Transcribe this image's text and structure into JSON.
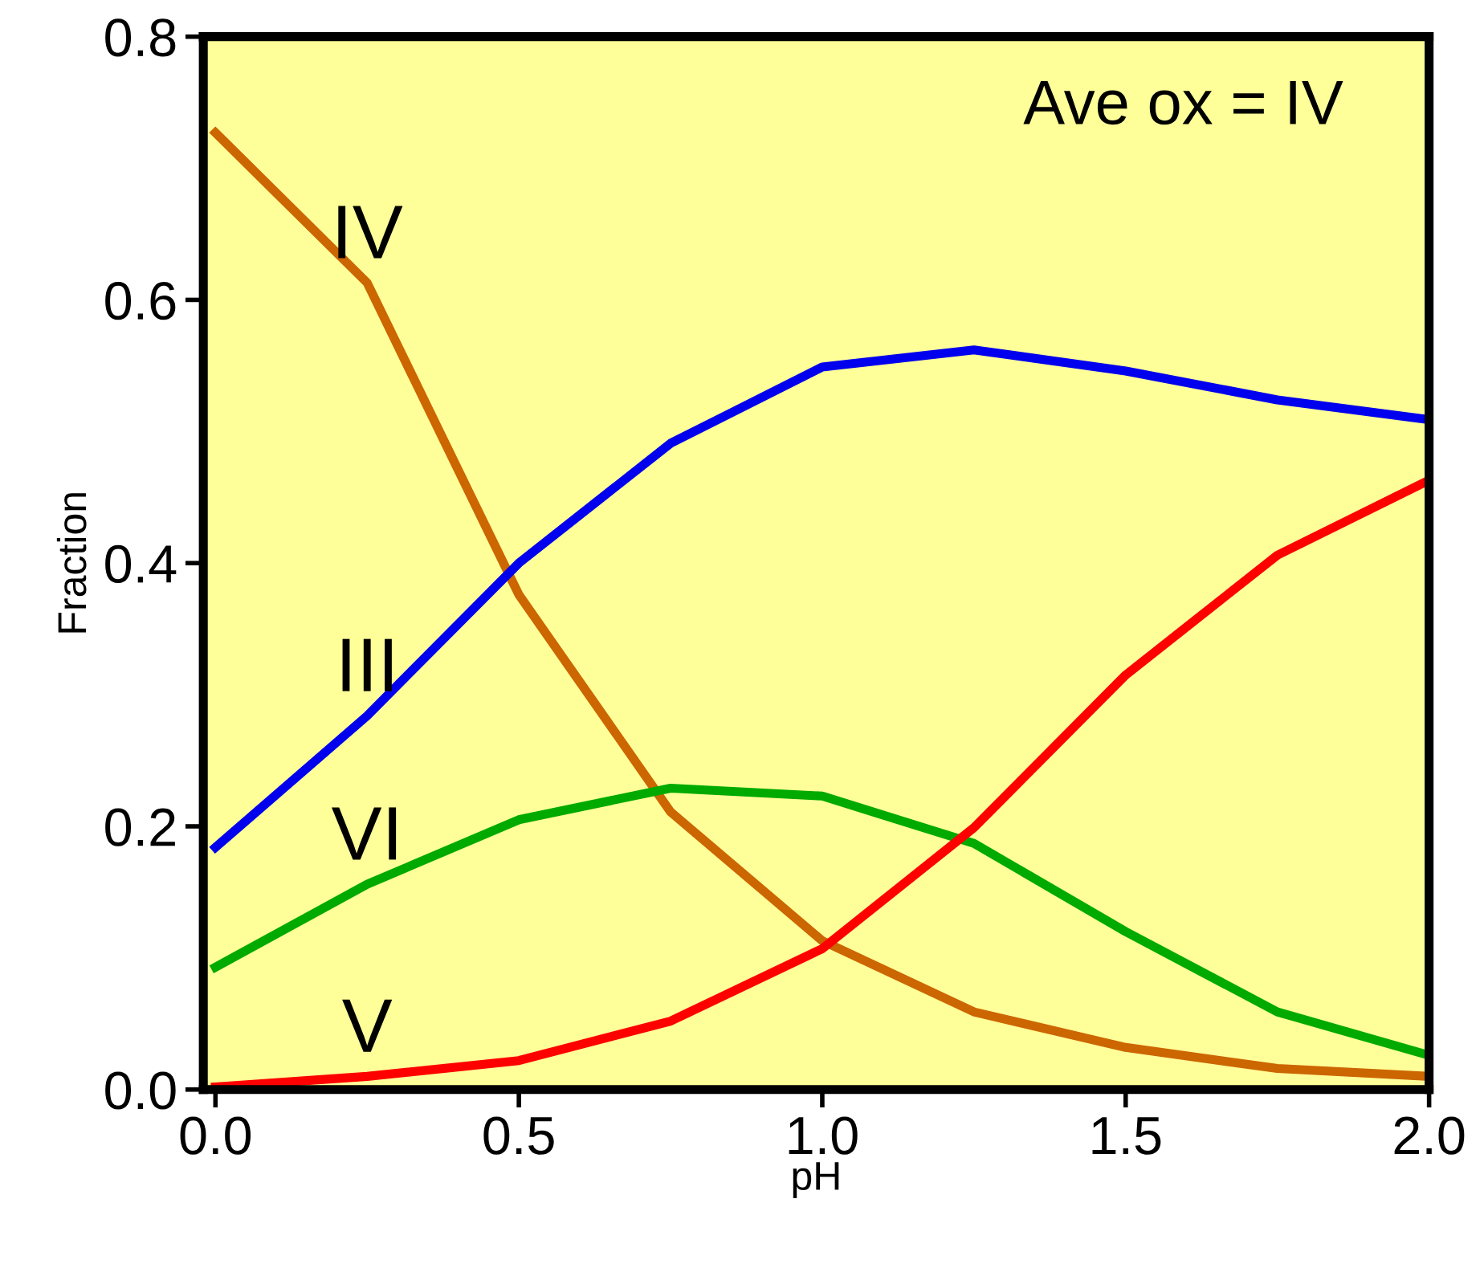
{
  "chart_data": {
    "type": "line",
    "xlabel": "pH",
    "ylabel": "Fraction",
    "x": [
      0,
      0.25,
      0.5,
      0.75,
      1.0,
      1.25,
      1.5,
      1.75,
      2.0
    ],
    "series": [
      {
        "name": "IV",
        "color": "#cc6600",
        "values": [
          0.727,
          0.613,
          0.376,
          0.211,
          0.113,
          0.059,
          0.032,
          0.016,
          0.01
        ]
      },
      {
        "name": "III",
        "color": "#0000ee",
        "values": [
          0.184,
          0.284,
          0.4,
          0.491,
          0.549,
          0.562,
          0.546,
          0.524,
          0.509
        ]
      },
      {
        "name": "VI",
        "color": "#00aa00",
        "values": [
          0.093,
          0.156,
          0.205,
          0.229,
          0.223,
          0.187,
          0.12,
          0.059,
          0.026
        ]
      },
      {
        "name": "V",
        "color": "#ff0000",
        "values": [
          0.002,
          0.01,
          0.022,
          0.052,
          0.107,
          0.199,
          0.315,
          0.406,
          0.463
        ]
      }
    ],
    "xlim": [
      -0.02,
      2.0
    ],
    "ylim": [
      0.0,
      0.8
    ],
    "xticks": [
      {
        "value": 0,
        "label": "0.0"
      },
      0.5,
      {
        "value": 1,
        "label": "1.0"
      },
      1.5,
      {
        "value": 2,
        "label": "2.0"
      }
    ],
    "yticks": [
      {
        "value": 0,
        "label": "0.0"
      },
      0.2,
      0.4,
      0.6,
      0.8
    ],
    "grid": false,
    "legend": false,
    "marker": "none",
    "line_style": "solid",
    "annotations": [
      "Ave ox = IV"
    ]
  }
}
